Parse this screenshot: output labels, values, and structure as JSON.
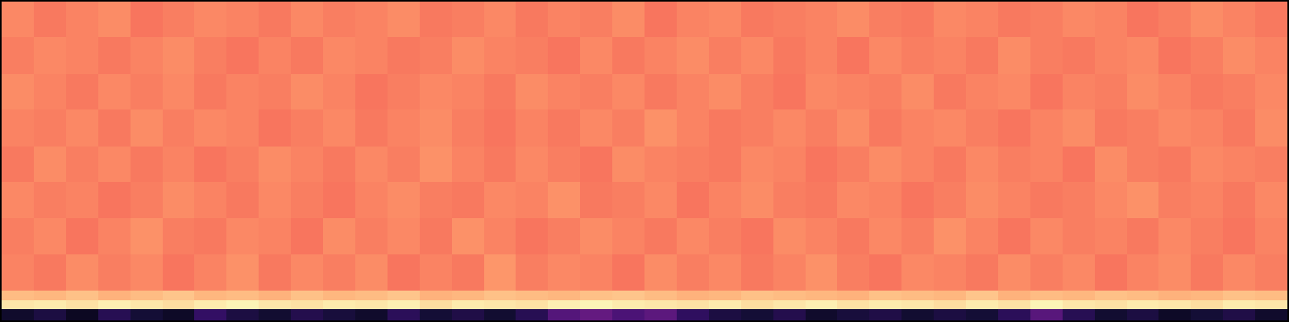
{
  "chart_data": {
    "type": "heatmap",
    "tick_labels": false,
    "grid": false,
    "xlim": [
      0,
      40
    ],
    "ylim": [
      0,
      392
    ],
    "zlim": [
      0,
      1
    ],
    "x": [
      0,
      1,
      2,
      3,
      4,
      5,
      6,
      7,
      8,
      9,
      10,
      11,
      12,
      13,
      14,
      15,
      16,
      17,
      18,
      19,
      20,
      21,
      22,
      23,
      24,
      25,
      26,
      27,
      28,
      29,
      30,
      31,
      32,
      33,
      34,
      35,
      36,
      37,
      38,
      39,
      40
    ],
    "y": [
      0,
      14,
      25,
      37,
      81,
      126,
      170,
      214,
      259,
      303,
      348,
      392
    ],
    "cells": [
      [
        0.08,
        0.12,
        0.06,
        0.15,
        0.1,
        0.07,
        0.18,
        0.12,
        0.09,
        0.14,
        0.11,
        0.08,
        0.16,
        0.1,
        0.13,
        0.09,
        0.15,
        0.26,
        0.3,
        0.24,
        0.28,
        0.17,
        0.12,
        0.1,
        0.14,
        0.08,
        0.11,
        0.13,
        0.09,
        0.12,
        0.1,
        0.16,
        0.27,
        0.15,
        0.09,
        0.12,
        0.07,
        0.1,
        0.13,
        0.08
      ],
      [
        0.95,
        0.96,
        0.94,
        0.97,
        0.95,
        0.93,
        0.96,
        0.98,
        0.95,
        0.94,
        0.96,
        0.95,
        0.97,
        0.93,
        0.96,
        0.95,
        0.94,
        0.97,
        0.98,
        0.96,
        0.95,
        0.94,
        0.96,
        0.93,
        0.95,
        0.97,
        0.94,
        0.96,
        0.95,
        0.93,
        0.96,
        0.94,
        0.98,
        0.95,
        0.94,
        0.96,
        0.95,
        0.93,
        0.96,
        0.95
      ],
      [
        0.86,
        0.85,
        0.87,
        0.84,
        0.86,
        0.88,
        0.85,
        0.86,
        0.84,
        0.87,
        0.85,
        0.86,
        0.88,
        0.84,
        0.85,
        0.87,
        0.86,
        0.85,
        0.87,
        0.88,
        0.86,
        0.84,
        0.85,
        0.87,
        0.86,
        0.85,
        0.84,
        0.87,
        0.86,
        0.85,
        0.88,
        0.84,
        0.86,
        0.85,
        0.87,
        0.86,
        0.84,
        0.85,
        0.87,
        0.86
      ],
      [
        0.74,
        0.72,
        0.76,
        0.73,
        0.75,
        0.71,
        0.74,
        0.77,
        0.72,
        0.75,
        0.73,
        0.76,
        0.71,
        0.74,
        0.72,
        0.78,
        0.73,
        0.75,
        0.74,
        0.71,
        0.76,
        0.73,
        0.75,
        0.72,
        0.74,
        0.77,
        0.73,
        0.71,
        0.75,
        0.74,
        0.72,
        0.76,
        0.73,
        0.75,
        0.71,
        0.74,
        0.76,
        0.72,
        0.75,
        0.73
      ],
      [
        0.73,
        0.75,
        0.71,
        0.74,
        0.77,
        0.73,
        0.72,
        0.75,
        0.74,
        0.71,
        0.76,
        0.73,
        0.75,
        0.72,
        0.77,
        0.74,
        0.71,
        0.73,
        0.76,
        0.74,
        0.72,
        0.75,
        0.73,
        0.71,
        0.76,
        0.74,
        0.72,
        0.75,
        0.73,
        0.77,
        0.74,
        0.71,
        0.75,
        0.73,
        0.74,
        0.72,
        0.75,
        0.73,
        0.71,
        0.74
      ],
      [
        0.75,
        0.73,
        0.74,
        0.71,
        0.73,
        0.76,
        0.74,
        0.72,
        0.75,
        0.73,
        0.71,
        0.74,
        0.76,
        0.73,
        0.72,
        0.75,
        0.74,
        0.77,
        0.72,
        0.73,
        0.75,
        0.71,
        0.74,
        0.76,
        0.73,
        0.72,
        0.75,
        0.74,
        0.71,
        0.73,
        0.76,
        0.74,
        0.72,
        0.73,
        0.75,
        0.77,
        0.73,
        0.74,
        0.72,
        0.75
      ],
      [
        0.72,
        0.76,
        0.73,
        0.75,
        0.72,
        0.74,
        0.71,
        0.73,
        0.76,
        0.74,
        0.72,
        0.75,
        0.73,
        0.77,
        0.74,
        0.72,
        0.75,
        0.73,
        0.71,
        0.76,
        0.74,
        0.73,
        0.72,
        0.75,
        0.74,
        0.71,
        0.73,
        0.76,
        0.74,
        0.72,
        0.75,
        0.73,
        0.74,
        0.71,
        0.76,
        0.73,
        0.72,
        0.75,
        0.74,
        0.73
      ],
      [
        0.74,
        0.73,
        0.75,
        0.72,
        0.76,
        0.73,
        0.75,
        0.74,
        0.71,
        0.73,
        0.75,
        0.72,
        0.74,
        0.76,
        0.73,
        0.71,
        0.74,
        0.72,
        0.75,
        0.73,
        0.77,
        0.74,
        0.72,
        0.73,
        0.75,
        0.73,
        0.76,
        0.72,
        0.74,
        0.75,
        0.73,
        0.71,
        0.74,
        0.76,
        0.72,
        0.73,
        0.75,
        0.74,
        0.72,
        0.76
      ],
      [
        0.76,
        0.74,
        0.72,
        0.75,
        0.73,
        0.75,
        0.72,
        0.74,
        0.73,
        0.76,
        0.74,
        0.71,
        0.73,
        0.75,
        0.74,
        0.72,
        0.76,
        0.74,
        0.73,
        0.75,
        0.72,
        0.74,
        0.76,
        0.73,
        0.71,
        0.75,
        0.74,
        0.73,
        0.76,
        0.72,
        0.74,
        0.75,
        0.71,
        0.74,
        0.73,
        0.76,
        0.74,
        0.72,
        0.73,
        0.75
      ],
      [
        0.73,
        0.75,
        0.74,
        0.72,
        0.74,
        0.76,
        0.73,
        0.71,
        0.74,
        0.72,
        0.75,
        0.74,
        0.72,
        0.73,
        0.76,
        0.74,
        0.73,
        0.71,
        0.75,
        0.72,
        0.74,
        0.76,
        0.73,
        0.75,
        0.72,
        0.74,
        0.71,
        0.75,
        0.73,
        0.74,
        0.72,
        0.76,
        0.73,
        0.72,
        0.74,
        0.75,
        0.71,
        0.73,
        0.76,
        0.74
      ],
      [
        0.75,
        0.72,
        0.74,
        0.76,
        0.71,
        0.73,
        0.75,
        0.74,
        0.72,
        0.75,
        0.73,
        0.74,
        0.76,
        0.72,
        0.73,
        0.75,
        0.72,
        0.74,
        0.73,
        0.76,
        0.71,
        0.74,
        0.75,
        0.72,
        0.73,
        0.74,
        0.76,
        0.73,
        0.72,
        0.75,
        0.74,
        0.72,
        0.73,
        0.75,
        0.74,
        0.71,
        0.73,
        0.76,
        0.74,
        0.72
      ]
    ]
  }
}
